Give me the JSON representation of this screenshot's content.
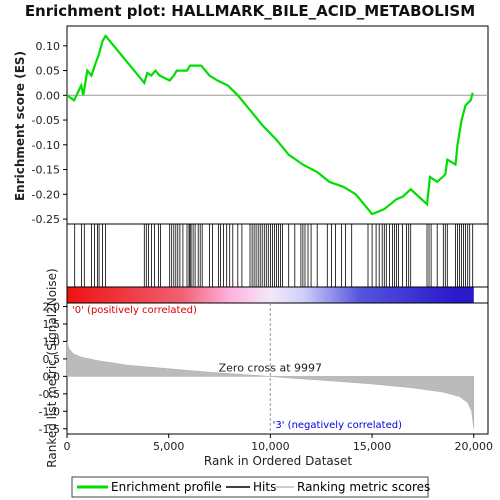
{
  "chart_data": {
    "type": "line",
    "title": "Enrichment plot: HALLMARK_BILE_ACID_METABOLISM",
    "panels": {
      "es": {
        "ylabel": "Enrichment score (ES)",
        "ylim": [
          -0.26,
          0.14
        ],
        "yticks": [
          0.1,
          0.05,
          0.0,
          -0.05,
          -0.1,
          -0.15,
          -0.2,
          -0.25
        ],
        "ytick_labels": [
          "0.10",
          "0.05",
          "0.00",
          "-0.05",
          "-0.10",
          "-0.15",
          "-0.20",
          "-0.25"
        ],
        "profile": {
          "name": "Enrichment profile",
          "color": "#00dd00",
          "x": [
            0,
            350,
            700,
            800,
            1000,
            1200,
            1450,
            1550,
            1750,
            1900,
            3800,
            3950,
            4150,
            4350,
            4550,
            5050,
            5250,
            5400,
            5600,
            5900,
            6050,
            6300,
            6600,
            7000,
            7400,
            7900,
            8400,
            9000,
            9600,
            10300,
            10900,
            11600,
            12300,
            12900,
            13600,
            14200,
            14700,
            15000,
            15300,
            15600,
            15900,
            16200,
            16500,
            16900,
            17700,
            17850,
            18200,
            18600,
            18700,
            19100,
            19200,
            19400,
            19600,
            19850,
            19950
          ],
          "y": [
            0.0,
            -0.01,
            0.02,
            0.0,
            0.05,
            0.04,
            0.07,
            0.08,
            0.11,
            0.12,
            0.025,
            0.045,
            0.04,
            0.05,
            0.04,
            0.03,
            0.04,
            0.05,
            0.05,
            0.05,
            0.06,
            0.06,
            0.06,
            0.04,
            0.03,
            0.02,
            0.0,
            -0.03,
            -0.06,
            -0.09,
            -0.12,
            -0.14,
            -0.155,
            -0.175,
            -0.185,
            -0.2,
            -0.225,
            -0.24,
            -0.235,
            -0.23,
            -0.22,
            -0.21,
            -0.205,
            -0.19,
            -0.22,
            -0.165,
            -0.175,
            -0.16,
            -0.13,
            -0.14,
            -0.1,
            -0.05,
            -0.02,
            -0.01,
            0.005
          ]
        }
      },
      "hits": {
        "name": "Hits",
        "positions": [
          380,
          720,
          850,
          1200,
          1350,
          1500,
          1580,
          1750,
          1900,
          3800,
          3900,
          4000,
          4150,
          4300,
          4500,
          4600,
          5050,
          5150,
          5250,
          5350,
          5450,
          5550,
          5700,
          5900,
          6000,
          6050,
          6100,
          6200,
          6300,
          6450,
          6550,
          6650,
          7000,
          7150,
          7450,
          7550,
          7700,
          7850,
          8000,
          8150,
          8400,
          8600,
          9000,
          9100,
          9200,
          9300,
          9400,
          9500,
          9600,
          9700,
          9800,
          9900,
          10000,
          10100,
          10200,
          10300,
          10400,
          10500,
          10600,
          10900,
          11200,
          11500,
          11600,
          11700,
          11850,
          12000,
          12300,
          12800,
          13000,
          13200,
          13500,
          13700,
          14000,
          14800,
          15000,
          15200,
          15350,
          15500,
          15600,
          15700,
          15850,
          16000,
          16100,
          16200,
          16300,
          16500,
          16700,
          16800,
          16900,
          17700,
          17800,
          17900,
          18200,
          18500,
          18600,
          18700,
          19100,
          19200,
          19300,
          19400,
          19500,
          19600,
          19700,
          19800,
          19950
        ]
      },
      "metric": {
        "name": "Ranking metric scores",
        "ylabel": "Ranked list metric (Signal2Noise)",
        "ylim": [
          -1.65,
          2.1
        ],
        "yticks": [
          2.0,
          1.5,
          1.0,
          0.5,
          0.0,
          -0.5,
          -1.0,
          -1.5
        ],
        "ytick_labels": [
          "2.0",
          "1.5",
          "1.0",
          "0.5",
          "0.0",
          "-0.5",
          "-1.0",
          "-1.5"
        ],
        "x": [
          0,
          100,
          300,
          700,
          1500,
          3000,
          5000,
          7000,
          9000,
          9997,
          11000,
          13000,
          15000,
          17000,
          18500,
          19300,
          19700,
          19900,
          20000
        ],
        "y": [
          1.0,
          0.8,
          0.65,
          0.55,
          0.45,
          0.32,
          0.22,
          0.12,
          0.04,
          0.0,
          -0.05,
          -0.13,
          -0.22,
          -0.33,
          -0.45,
          -0.58,
          -0.75,
          -1.0,
          -1.5
        ]
      }
    },
    "xlabel": "Rank in Ordered Dataset",
    "xlim": [
      0,
      20700
    ],
    "xticks": [
      0,
      5000,
      10000,
      15000,
      20000
    ],
    "xtick_labels": [
      "0",
      "5,000",
      "10,000",
      "15,000",
      "20,000"
    ],
    "annotations": {
      "positive": "'0' (positively correlated)",
      "negative": "'3' (negatively correlated)",
      "zero_cross": "Zero cross at 9997",
      "zero_cross_rank": 9997
    },
    "legend": {
      "placement": "bottom",
      "items": [
        {
          "label": "Enrichment profile",
          "color": "#00dd00"
        },
        {
          "label": "Hits",
          "color": "#000000"
        },
        {
          "label": "Ranking metric scores",
          "color": "#bbbbbb"
        }
      ]
    },
    "colors": {
      "positive_label": "#dd0000",
      "negative_label": "#0000dd",
      "heat_red": "#ee2222",
      "heat_pink": "#ffbbee",
      "heat_blue": "#2222cc",
      "metric_fill": "#bbbbbb"
    }
  }
}
